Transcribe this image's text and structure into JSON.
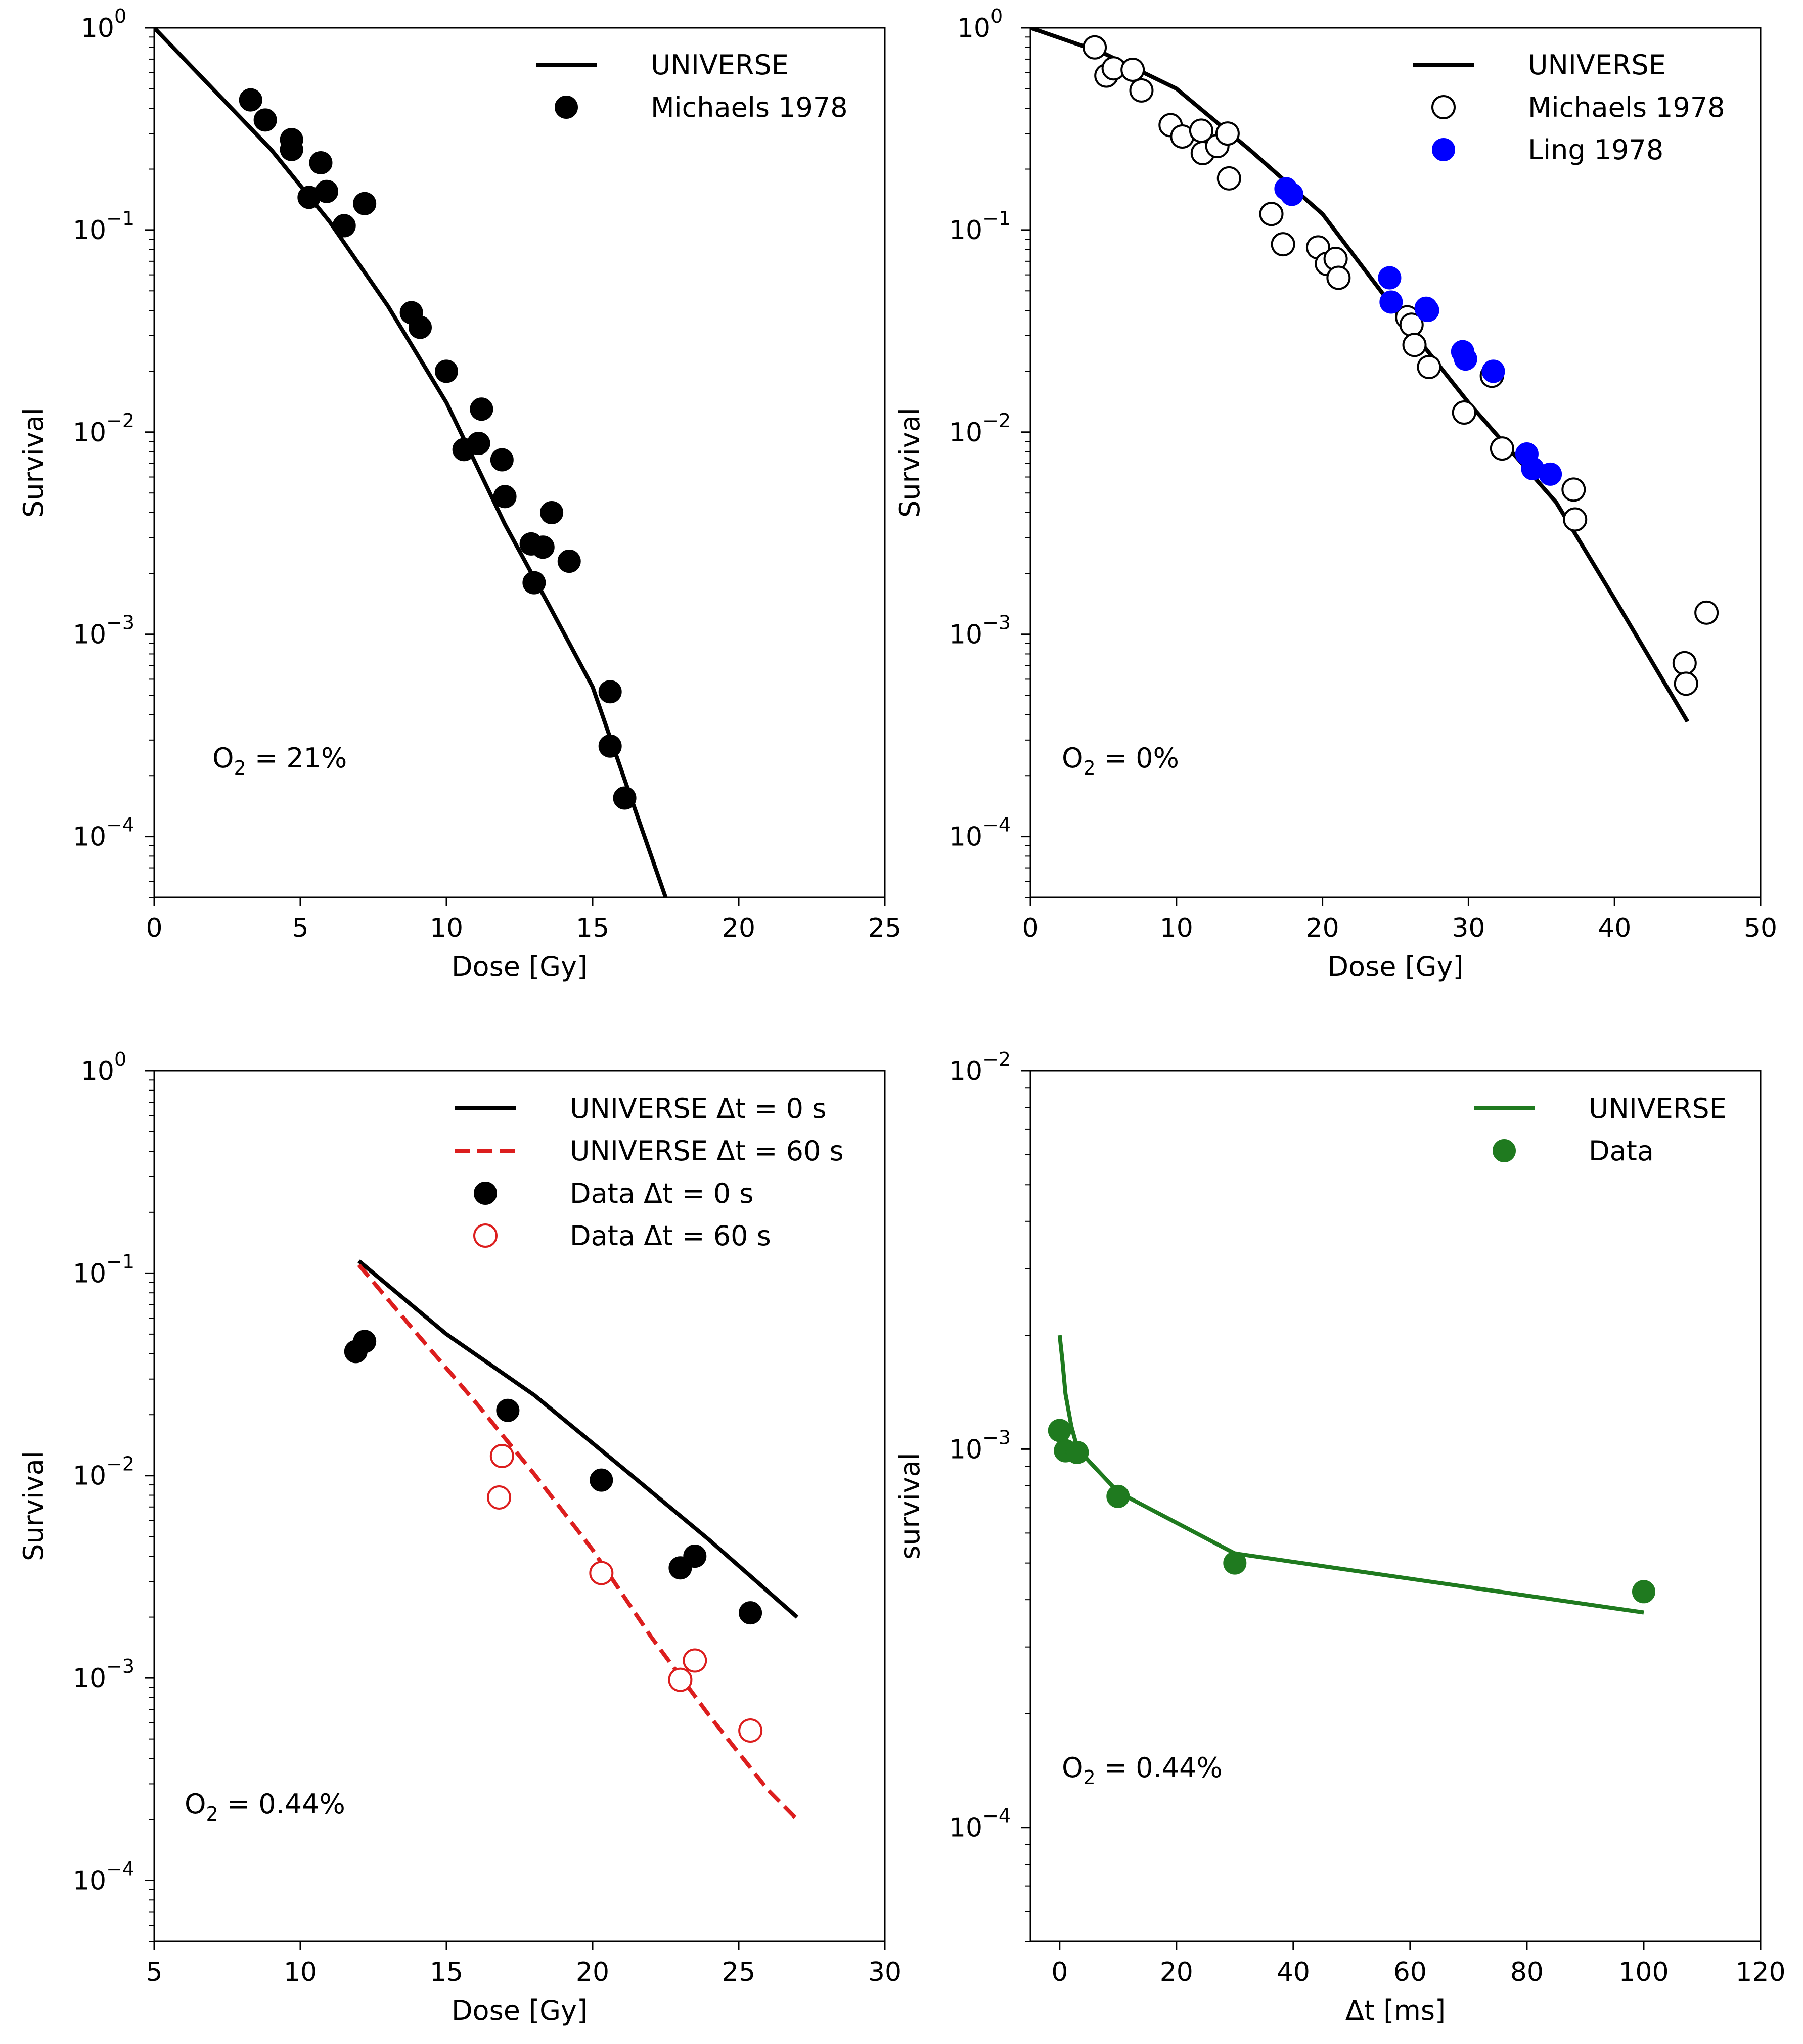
{
  "chart_data": [
    {
      "type": "scatter",
      "xlabel": "Dose [Gy]",
      "ylabel": "Survival",
      "xlim": [
        0,
        25
      ],
      "ylim": [
        5e-05,
        1
      ],
      "yscale": "log",
      "xticks": [
        0,
        5,
        10,
        15,
        20,
        25
      ],
      "xtick_labels": [
        "0",
        "5",
        "10",
        "15",
        "20",
        "25"
      ],
      "yticks": [
        1,
        0.1,
        0.01,
        0.001,
        0.0001
      ],
      "ytick_labels": [
        {
          "base": "10",
          "exp": "0"
        },
        {
          "base": "10",
          "exp": "−1"
        },
        {
          "base": "10",
          "exp": "−2"
        },
        {
          "base": "10",
          "exp": "−3"
        },
        {
          "base": "10",
          "exp": "−4"
        }
      ],
      "legend_position": "top-right",
      "annotation": {
        "main": "O",
        "sub": "2",
        "rest": " = 21%"
      },
      "series": [
        {
          "name": "UNIVERSE",
          "kind": "line",
          "color": "#000000",
          "dash": "solid",
          "x": [
            0,
            2,
            4,
            6,
            8,
            10,
            12,
            13.5,
            15,
            16,
            17.5
          ],
          "y": [
            1,
            0.5,
            0.25,
            0.11,
            0.042,
            0.014,
            0.0035,
            0.0014,
            0.00055,
            0.00021,
            5e-05
          ]
        },
        {
          "name": "Michaels 1978",
          "kind": "points",
          "marker": "filled",
          "color": "#000000",
          "x": [
            3.3,
            3.8,
            4.7,
            4.7,
            5.3,
            5.7,
            5.9,
            6.5,
            7.2,
            8.8,
            9.1,
            10.0,
            10.6,
            11.1,
            11.2,
            11.9,
            12.0,
            12.9,
            13.0,
            13.3,
            13.6,
            14.2,
            15.6,
            15.6,
            16.1
          ],
          "y": [
            0.44,
            0.35,
            0.28,
            0.25,
            0.145,
            0.215,
            0.155,
            0.105,
            0.135,
            0.039,
            0.033,
            0.02,
            0.0082,
            0.0088,
            0.013,
            0.0073,
            0.0048,
            0.0028,
            0.0018,
            0.0027,
            0.004,
            0.0023,
            0.00052,
            0.00028,
            0.000155
          ]
        }
      ]
    },
    {
      "type": "scatter",
      "xlabel": "Dose [Gy]",
      "ylabel": "Survival",
      "xlim": [
        0,
        50
      ],
      "ylim": [
        5e-05,
        1
      ],
      "yscale": "log",
      "xticks": [
        0,
        10,
        20,
        30,
        40,
        50
      ],
      "xtick_labels": [
        "0",
        "10",
        "20",
        "30",
        "40",
        "50"
      ],
      "yticks": [
        1,
        0.1,
        0.01,
        0.001,
        0.0001
      ],
      "ytick_labels": [
        {
          "base": "10",
          "exp": "0"
        },
        {
          "base": "10",
          "exp": "−1"
        },
        {
          "base": "10",
          "exp": "−2"
        },
        {
          "base": "10",
          "exp": "−3"
        },
        {
          "base": "10",
          "exp": "−4"
        }
      ],
      "legend_position": "top-right",
      "annotation": {
        "main": "O",
        "sub": "2",
        "rest": " = 0%"
      },
      "series": [
        {
          "name": "UNIVERSE",
          "kind": "line",
          "color": "#000000",
          "dash": "solid",
          "x": [
            0,
            5,
            10,
            15,
            20,
            25,
            30,
            36,
            40,
            45
          ],
          "y": [
            1,
            0.75,
            0.5,
            0.25,
            0.12,
            0.04,
            0.014,
            0.0045,
            0.0015,
            0.00037
          ]
        },
        {
          "name": "Michaels 1978",
          "kind": "points",
          "marker": "open",
          "color": "#000000",
          "x": [
            4.4,
            5.2,
            5.7,
            7.0,
            7.6,
            9.6,
            10.4,
            11.7,
            11.8,
            12.8,
            13.5,
            13.6,
            16.5,
            17.3,
            19.7,
            20.3,
            20.9,
            21.1,
            25.8,
            26.1,
            26.3,
            27.3,
            29.7,
            31.6,
            32.3,
            37.2,
            37.3,
            44.8,
            44.9,
            46.3
          ],
          "y": [
            0.8,
            0.58,
            0.63,
            0.62,
            0.49,
            0.33,
            0.29,
            0.31,
            0.24,
            0.26,
            0.3,
            0.18,
            0.12,
            0.085,
            0.082,
            0.068,
            0.072,
            0.058,
            0.037,
            0.034,
            0.027,
            0.021,
            0.0125,
            0.019,
            0.0083,
            0.0052,
            0.0037,
            0.00072,
            0.00057,
            0.00128
          ]
        },
        {
          "name": "Ling 1978",
          "kind": "points",
          "marker": "filled",
          "color": "#0000ff",
          "x": [
            17.5,
            17.9,
            24.6,
            24.7,
            27.1,
            27.2,
            29.6,
            29.8,
            31.7,
            34.0,
            34.4,
            35.6
          ],
          "y": [
            0.16,
            0.15,
            0.058,
            0.044,
            0.041,
            0.04,
            0.025,
            0.023,
            0.02,
            0.0078,
            0.0066,
            0.0062
          ]
        }
      ]
    },
    {
      "type": "scatter",
      "xlabel": "Dose [Gy]",
      "ylabel": "Survival",
      "xlim": [
        5,
        30
      ],
      "ylim": [
        5e-05,
        1
      ],
      "yscale": "log",
      "xticks": [
        5,
        10,
        15,
        20,
        25,
        30
      ],
      "xtick_labels": [
        "5",
        "10",
        "15",
        "20",
        "25",
        "30"
      ],
      "yticks": [
        1,
        0.1,
        0.01,
        0.001,
        0.0001
      ],
      "ytick_labels": [
        {
          "base": "10",
          "exp": "0"
        },
        {
          "base": "10",
          "exp": "−1"
        },
        {
          "base": "10",
          "exp": "−2"
        },
        {
          "base": "10",
          "exp": "−3"
        },
        {
          "base": "10",
          "exp": "−4"
        }
      ],
      "legend_position": "top-right",
      "annotation": {
        "main": "O",
        "sub": "2",
        "rest": " = 0.44%"
      },
      "series": [
        {
          "name": "UNIVERSE Δt = 0 s",
          "kind": "line",
          "color": "#000000",
          "dash": "solid",
          "x": [
            12,
            15,
            18,
            21,
            24,
            27
          ],
          "y": [
            0.115,
            0.05,
            0.025,
            0.011,
            0.0048,
            0.002
          ]
        },
        {
          "name": "UNIVERSE Δt = 60 s",
          "kind": "line",
          "color": "#dc1e1e",
          "dash": "dashed",
          "x": [
            12,
            14,
            16,
            18,
            20,
            22,
            24,
            26,
            27
          ],
          "y": [
            0.11,
            0.05,
            0.023,
            0.0102,
            0.0043,
            0.0016,
            0.00065,
            0.00028,
            0.0002
          ]
        },
        {
          "name": "Data Δt = 0 s",
          "kind": "points",
          "marker": "filled",
          "color": "#000000",
          "x": [
            11.9,
            12.2,
            17.1,
            20.3,
            23.0,
            23.5,
            25.4
          ],
          "y": [
            0.041,
            0.046,
            0.021,
            0.0095,
            0.0035,
            0.004,
            0.0021
          ]
        },
        {
          "name": "Data Δt = 60 s",
          "kind": "points",
          "marker": "open",
          "color": "#dc1e1e",
          "x": [
            16.8,
            16.9,
            20.3,
            23.0,
            23.5,
            25.4
          ],
          "y": [
            0.0078,
            0.0125,
            0.0033,
            0.00098,
            0.00122,
            0.00055
          ]
        }
      ]
    },
    {
      "type": "line",
      "xlabel": "Δt [ms]",
      "ylabel": "survival",
      "xlim": [
        -5,
        120
      ],
      "ylim": [
        5e-05,
        0.01
      ],
      "yscale": "log",
      "xticks": [
        0,
        20,
        40,
        60,
        80,
        100,
        120
      ],
      "xtick_labels": [
        "0",
        "20",
        "40",
        "60",
        "80",
        "100",
        "120"
      ],
      "yticks": [
        0.01,
        0.001,
        0.0001
      ],
      "ytick_labels": [
        {
          "base": "10",
          "exp": "−2"
        },
        {
          "base": "10",
          "exp": "−3"
        },
        {
          "base": "10",
          "exp": "−4"
        }
      ],
      "legend_position": "top-right",
      "annotation": {
        "main": "O",
        "sub": "2",
        "rest": " = 0.44%"
      },
      "series": [
        {
          "name": "UNIVERSE",
          "kind": "line",
          "color": "#1f7a1f",
          "dash": "solid",
          "x": [
            0,
            0.5,
            1,
            2,
            3,
            5,
            10,
            30,
            100
          ],
          "y": [
            0.002,
            0.0017,
            0.0014,
            0.00115,
            0.00101,
            0.00093,
            0.00077,
            0.00053,
            0.00037
          ]
        },
        {
          "name": "Data",
          "kind": "points",
          "marker": "filled",
          "color": "#1f7a1f",
          "x": [
            0,
            1,
            3,
            10,
            30,
            100
          ],
          "y": [
            0.00112,
            0.00099,
            0.00098,
            0.00075,
            0.0005,
            0.00042
          ]
        }
      ]
    }
  ]
}
